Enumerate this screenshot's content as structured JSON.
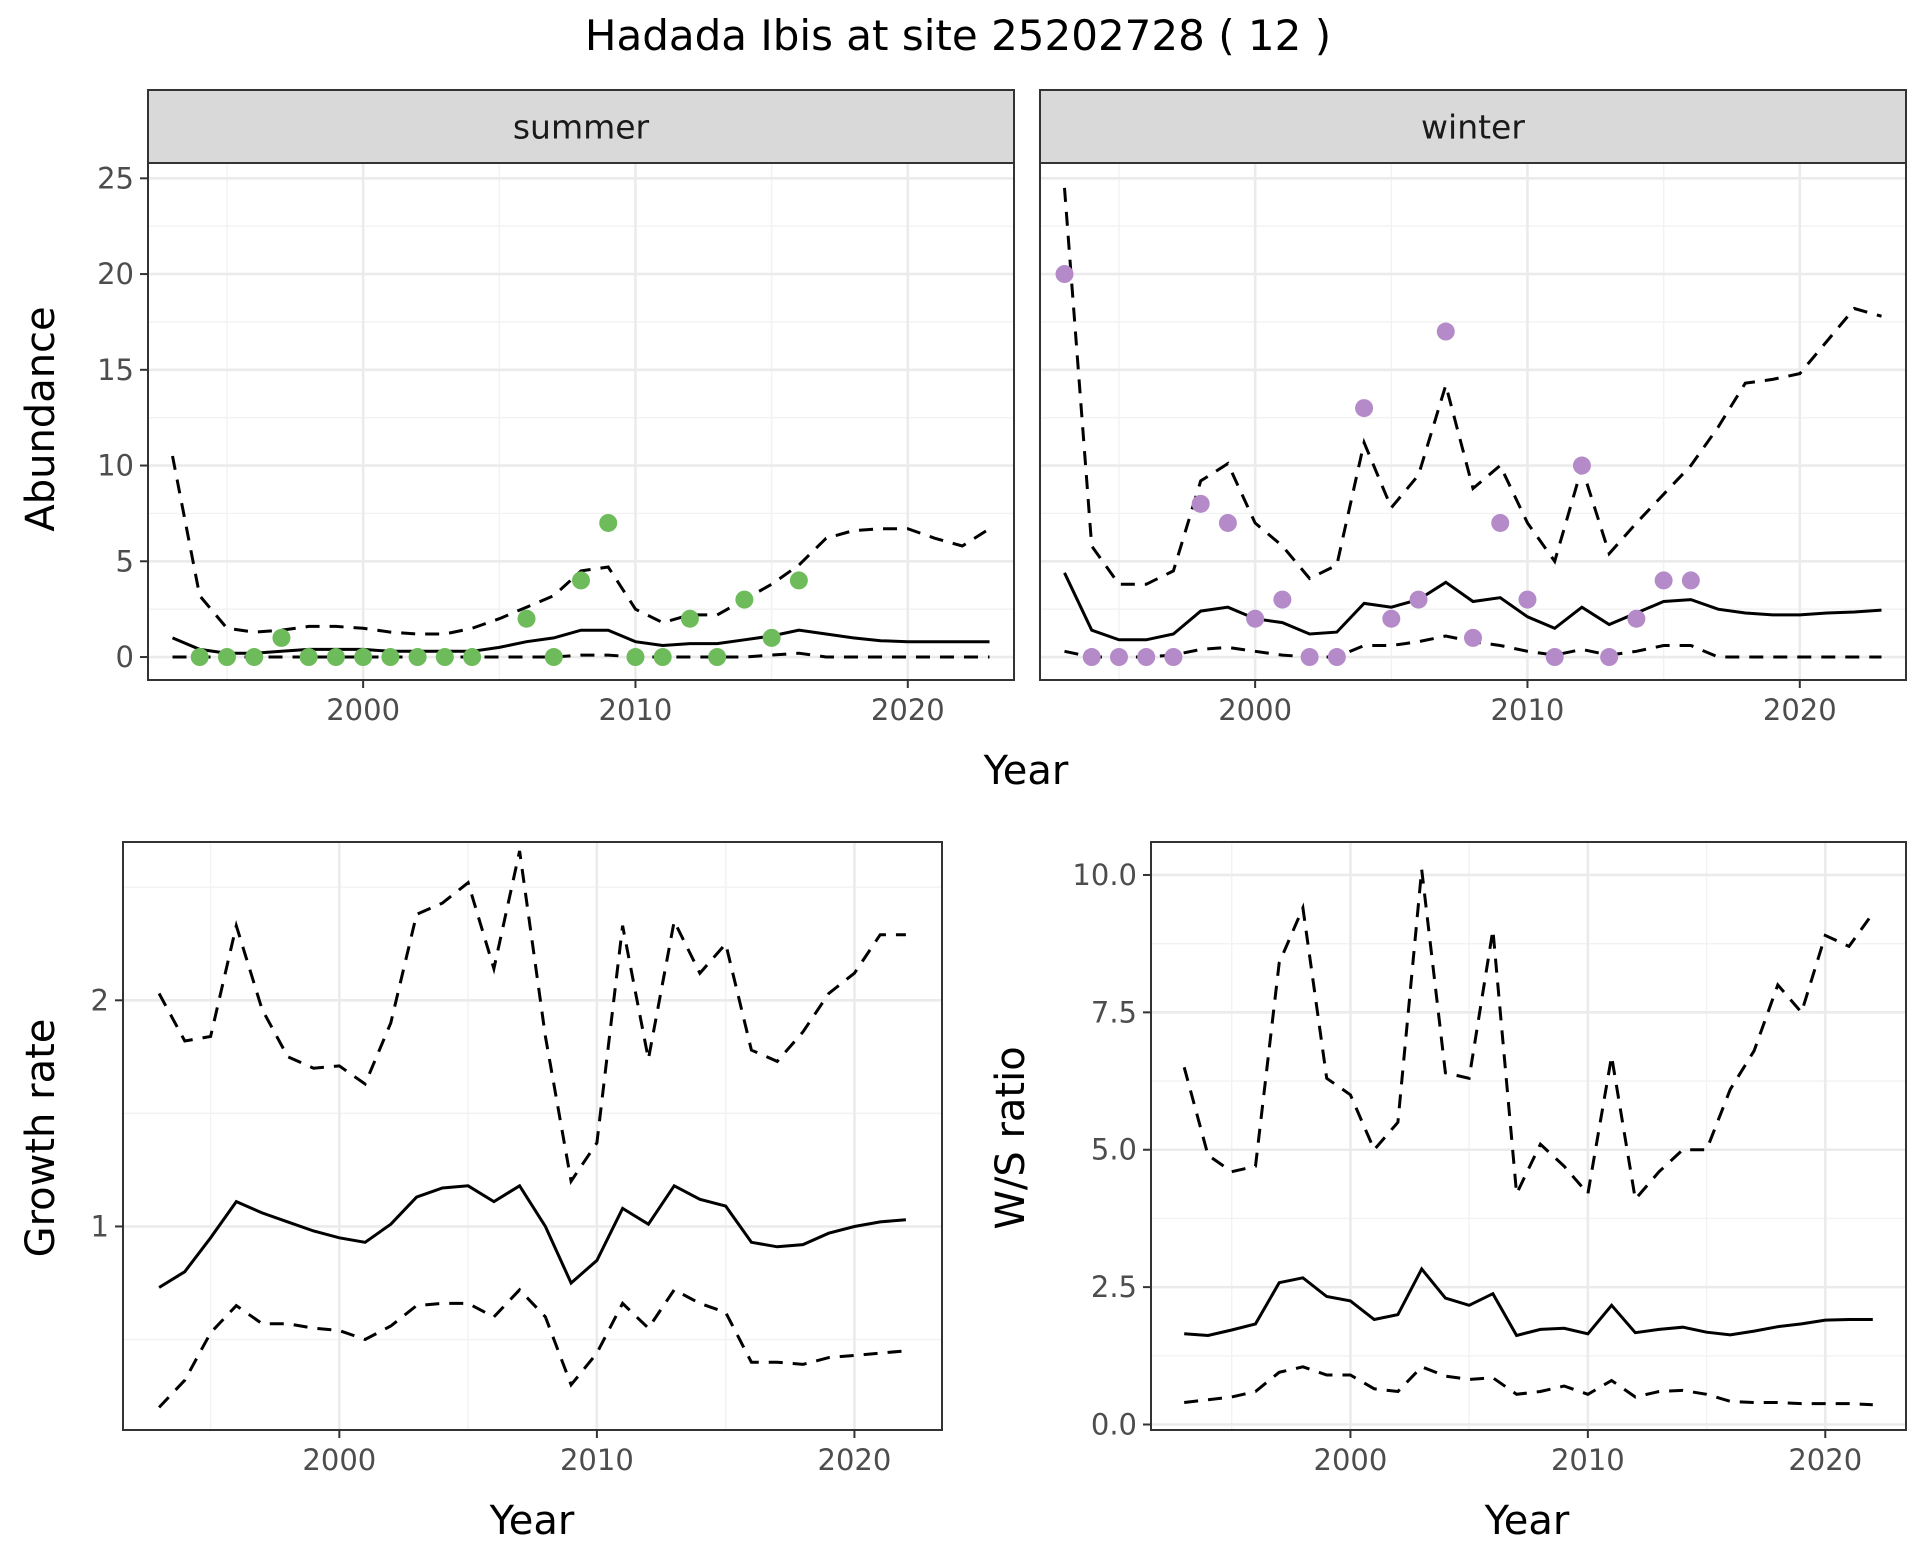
{
  "title": "Hadada Ibis at site 25202728 ( 12 )",
  "colors": {
    "summer_points": "#6dbb5a",
    "winter_points": "#b48ac8",
    "strip_fill": "#d9d9d9",
    "line": "#000000"
  },
  "chart_data": [
    {
      "id": "abundance-summer",
      "type": "line",
      "strip": "summer",
      "ylabel": "Abundance",
      "shared_xlabel": "Year",
      "xlim": [
        1992.1,
        2023.9
      ],
      "ylim": [
        -1.2,
        25.8
      ],
      "xticks": [
        2000,
        2010,
        2020
      ],
      "yticks": [
        0,
        5,
        10,
        15,
        20,
        25
      ],
      "series": [
        {
          "kind": "mean",
          "x": [
            1993,
            1994,
            1995,
            1996,
            1997,
            1998,
            1999,
            2000,
            2001,
            2002,
            2003,
            2004,
            2005,
            2006,
            2007,
            2008,
            2009,
            2010,
            2011,
            2012,
            2013,
            2014,
            2015,
            2016,
            2017,
            2018,
            2019,
            2020,
            2021,
            2022,
            2023
          ],
          "y": [
            1.0,
            0.4,
            0.2,
            0.2,
            0.3,
            0.4,
            0.4,
            0.4,
            0.3,
            0.3,
            0.3,
            0.3,
            0.5,
            0.8,
            1.0,
            1.4,
            1.4,
            0.8,
            0.6,
            0.7,
            0.7,
            0.9,
            1.1,
            1.4,
            1.2,
            1.0,
            0.85,
            0.8,
            0.8,
            0.8,
            0.8
          ]
        },
        {
          "kind": "upper",
          "x": [
            1993,
            1994,
            1995,
            1996,
            1997,
            1998,
            1999,
            2000,
            2001,
            2002,
            2003,
            2004,
            2005,
            2006,
            2007,
            2008,
            2009,
            2010,
            2011,
            2012,
            2013,
            2014,
            2015,
            2016,
            2017,
            2018,
            2019,
            2020,
            2021,
            2022,
            2023
          ],
          "y": [
            10.5,
            3.2,
            1.5,
            1.3,
            1.4,
            1.6,
            1.6,
            1.5,
            1.3,
            1.2,
            1.2,
            1.5,
            2.0,
            2.6,
            3.2,
            4.5,
            4.7,
            2.5,
            1.8,
            2.2,
            2.2,
            3.0,
            3.8,
            4.8,
            6.2,
            6.6,
            6.7,
            6.7,
            6.2,
            5.8,
            6.7
          ]
        },
        {
          "kind": "lower",
          "x": [
            1993,
            1994,
            1995,
            1996,
            1997,
            1998,
            1999,
            2000,
            2001,
            2002,
            2003,
            2004,
            2005,
            2006,
            2007,
            2008,
            2009,
            2010,
            2011,
            2012,
            2013,
            2014,
            2015,
            2016,
            2017,
            2018,
            2019,
            2020,
            2021,
            2022,
            2023
          ],
          "y": [
            0,
            0,
            0,
            0,
            0,
            0,
            0,
            0,
            0,
            0,
            0,
            0,
            0,
            0,
            0,
            0.1,
            0.1,
            0,
            0,
            0,
            0,
            0,
            0.1,
            0.2,
            0,
            0,
            0,
            0,
            0,
            0,
            0
          ]
        }
      ],
      "points": {
        "x": [
          1994,
          1995,
          1996,
          1997,
          1998,
          1999,
          2000,
          2001,
          2002,
          2003,
          2004,
          2006,
          2007,
          2008,
          2009,
          2010,
          2011,
          2012,
          2013,
          2014,
          2015,
          2016
        ],
        "y": [
          0,
          0,
          0,
          1,
          0,
          0,
          0,
          0,
          0,
          0,
          0,
          2,
          0,
          4,
          7,
          0,
          0,
          2,
          0,
          3,
          1,
          4
        ]
      }
    },
    {
      "id": "abundance-winter",
      "type": "line",
      "strip": "winter",
      "xlim": [
        1992.1,
        2023.9
      ],
      "ylim": [
        -1.2,
        25.8
      ],
      "xticks": [
        2000,
        2010,
        2020
      ],
      "series": [
        {
          "kind": "mean",
          "x": [
            1993,
            1994,
            1995,
            1996,
            1997,
            1998,
            1999,
            2000,
            2001,
            2002,
            2003,
            2004,
            2005,
            2006,
            2007,
            2008,
            2009,
            2010,
            2011,
            2012,
            2013,
            2014,
            2015,
            2016,
            2017,
            2018,
            2019,
            2020,
            2021,
            2022,
            2023
          ],
          "y": [
            4.4,
            1.4,
            0.9,
            0.9,
            1.2,
            2.4,
            2.6,
            2.0,
            1.8,
            1.2,
            1.3,
            2.8,
            2.6,
            3.0,
            3.9,
            2.9,
            3.1,
            2.1,
            1.5,
            2.6,
            1.7,
            2.3,
            2.9,
            3.0,
            2.5,
            2.3,
            2.2,
            2.2,
            2.3,
            2.35,
            2.45
          ]
        },
        {
          "kind": "upper",
          "x": [
            1993,
            1994,
            1995,
            1996,
            1997,
            1998,
            1999,
            2000,
            2001,
            2002,
            2003,
            2004,
            2005,
            2006,
            2007,
            2008,
            2009,
            2010,
            2011,
            2012,
            2013,
            2014,
            2015,
            2016,
            2017,
            2018,
            2019,
            2020,
            2021,
            2022,
            2023
          ],
          "y": [
            24.5,
            5.8,
            3.8,
            3.8,
            4.5,
            9.2,
            10.1,
            7.0,
            5.8,
            4.1,
            4.8,
            11.2,
            7.8,
            9.5,
            14.2,
            8.8,
            10.0,
            7.0,
            5.0,
            9.9,
            5.4,
            7.0,
            8.5,
            10.0,
            12.0,
            14.3,
            14.5,
            14.8,
            16.5,
            18.2,
            17.8
          ]
        },
        {
          "kind": "lower",
          "x": [
            1993,
            1994,
            1995,
            1996,
            1997,
            1998,
            1999,
            2000,
            2001,
            2002,
            2003,
            2004,
            2005,
            2006,
            2007,
            2008,
            2009,
            2010,
            2011,
            2012,
            2013,
            2014,
            2015,
            2016,
            2017,
            2018,
            2019,
            2020,
            2021,
            2022,
            2023
          ],
          "y": [
            0.3,
            0,
            0,
            0,
            0.1,
            0.4,
            0.5,
            0.3,
            0.1,
            0,
            0,
            0.6,
            0.6,
            0.8,
            1.1,
            0.8,
            0.6,
            0.3,
            0.1,
            0.4,
            0.1,
            0.3,
            0.6,
            0.6,
            0,
            0,
            0,
            0,
            0,
            0,
            0
          ]
        }
      ],
      "points": {
        "x": [
          1993,
          1994,
          1995,
          1996,
          1997,
          1998,
          1999,
          2000,
          2001,
          2002,
          2003,
          2004,
          2005,
          2006,
          2007,
          2008,
          2009,
          2010,
          2011,
          2012,
          2013,
          2014,
          2015,
          2016
        ],
        "y": [
          20,
          0,
          0,
          0,
          0,
          8,
          7,
          2,
          3,
          0,
          0,
          13,
          2,
          3,
          17,
          1,
          7,
          3,
          0,
          10,
          0,
          2,
          4,
          4
        ]
      }
    },
    {
      "id": "growth-rate",
      "type": "line",
      "xlabel": "Year",
      "ylabel": "Growth rate",
      "xlim": [
        1991.6,
        2023.4
      ],
      "ylim": [
        0.1,
        2.7
      ],
      "xticks": [
        2000,
        2010,
        2020
      ],
      "yticks": [
        1,
        2
      ],
      "series": [
        {
          "kind": "mean",
          "x": [
            1993,
            1994,
            1995,
            1996,
            1997,
            1998,
            1999,
            2000,
            2001,
            2002,
            2003,
            2004,
            2005,
            2006,
            2007,
            2008,
            2009,
            2010,
            2011,
            2012,
            2013,
            2014,
            2015,
            2016,
            2017,
            2018,
            2019,
            2020,
            2021,
            2022
          ],
          "y": [
            0.73,
            0.8,
            0.95,
            1.11,
            1.06,
            1.02,
            0.98,
            0.95,
            0.93,
            1.01,
            1.13,
            1.17,
            1.18,
            1.11,
            1.18,
            1.0,
            0.75,
            0.85,
            1.08,
            1.01,
            1.18,
            1.12,
            1.09,
            0.93,
            0.91,
            0.92,
            0.97,
            1.0,
            1.02,
            1.03
          ]
        },
        {
          "kind": "upper",
          "x": [
            1993,
            1994,
            1995,
            1996,
            1997,
            1998,
            1999,
            2000,
            2001,
            2002,
            2003,
            2004,
            2005,
            2006,
            2007,
            2008,
            2009,
            2010,
            2011,
            2012,
            2013,
            2014,
            2015,
            2016,
            2017,
            2018,
            2019,
            2020,
            2021,
            2022
          ],
          "y": [
            2.03,
            1.82,
            1.84,
            2.33,
            1.96,
            1.75,
            1.7,
            1.71,
            1.63,
            1.9,
            2.38,
            2.43,
            2.52,
            2.14,
            2.66,
            1.84,
            1.2,
            1.37,
            2.33,
            1.74,
            2.35,
            2.12,
            2.25,
            1.78,
            1.73,
            1.86,
            2.03,
            2.12,
            2.29,
            2.29
          ]
        },
        {
          "kind": "lower",
          "x": [
            1993,
            1994,
            1995,
            1996,
            1997,
            1998,
            1999,
            2000,
            2001,
            2002,
            2003,
            2004,
            2005,
            2006,
            2007,
            2008,
            2009,
            2010,
            2011,
            2012,
            2013,
            2014,
            2015,
            2016,
            2017,
            2018,
            2019,
            2020,
            2021,
            2022
          ],
          "y": [
            0.2,
            0.32,
            0.53,
            0.65,
            0.57,
            0.57,
            0.55,
            0.54,
            0.5,
            0.56,
            0.65,
            0.66,
            0.66,
            0.6,
            0.72,
            0.6,
            0.3,
            0.44,
            0.66,
            0.55,
            0.72,
            0.66,
            0.62,
            0.4,
            0.4,
            0.39,
            0.42,
            0.43,
            0.44,
            0.45
          ]
        }
      ]
    },
    {
      "id": "ws-ratio",
      "type": "line",
      "xlabel": "Year",
      "ylabel": "W/S ratio",
      "xlim": [
        1991.6,
        2023.4
      ],
      "ylim": [
        -0.1,
        10.6
      ],
      "xticks": [
        2000,
        2010,
        2020
      ],
      "yticks": [
        0.0,
        2.5,
        5.0,
        7.5,
        10.0
      ],
      "ytick_labels": [
        "0.0",
        "2.5",
        "5.0",
        "7.5",
        "10.0"
      ],
      "series": [
        {
          "kind": "mean",
          "x": [
            1993,
            1994,
            1995,
            1996,
            1997,
            1998,
            1999,
            2000,
            2001,
            2002,
            2003,
            2004,
            2005,
            2006,
            2007,
            2008,
            2009,
            2010,
            2011,
            2012,
            2013,
            2014,
            2015,
            2016,
            2017,
            2018,
            2019,
            2020,
            2021,
            2022
          ],
          "y": [
            1.65,
            1.62,
            1.72,
            1.83,
            2.58,
            2.67,
            2.33,
            2.25,
            1.91,
            2.0,
            2.83,
            2.3,
            2.17,
            2.38,
            1.62,
            1.73,
            1.75,
            1.65,
            2.17,
            1.67,
            1.73,
            1.77,
            1.68,
            1.63,
            1.7,
            1.78,
            1.83,
            1.9,
            1.91,
            1.91
          ]
        },
        {
          "kind": "upper",
          "x": [
            1993,
            1994,
            1995,
            1996,
            1997,
            1998,
            1999,
            2000,
            2001,
            2002,
            2003,
            2004,
            2005,
            2006,
            2007,
            2008,
            2009,
            2010,
            2011,
            2012,
            2013,
            2014,
            2015,
            2016,
            2017,
            2018,
            2019,
            2020,
            2021,
            2022
          ],
          "y": [
            6.5,
            4.9,
            4.6,
            4.7,
            8.4,
            9.4,
            6.3,
            6.0,
            5.0,
            5.5,
            10.1,
            6.4,
            6.3,
            9.0,
            4.2,
            5.1,
            4.7,
            4.2,
            6.7,
            4.1,
            4.6,
            5.0,
            5.0,
            6.1,
            6.8,
            8.0,
            7.5,
            8.9,
            8.7,
            9.3
          ]
        },
        {
          "kind": "lower",
          "x": [
            1993,
            1994,
            1995,
            1996,
            1997,
            1998,
            1999,
            2000,
            2001,
            2002,
            2003,
            2004,
            2005,
            2006,
            2007,
            2008,
            2009,
            2010,
            2011,
            2012,
            2013,
            2014,
            2015,
            2016,
            2017,
            2018,
            2019,
            2020,
            2021,
            2022
          ],
          "y": [
            0.4,
            0.45,
            0.5,
            0.6,
            0.95,
            1.05,
            0.9,
            0.9,
            0.65,
            0.6,
            1.05,
            0.88,
            0.82,
            0.85,
            0.55,
            0.6,
            0.7,
            0.55,
            0.8,
            0.5,
            0.6,
            0.62,
            0.55,
            0.42,
            0.4,
            0.4,
            0.38,
            0.38,
            0.38,
            0.36
          ]
        }
      ]
    }
  ]
}
